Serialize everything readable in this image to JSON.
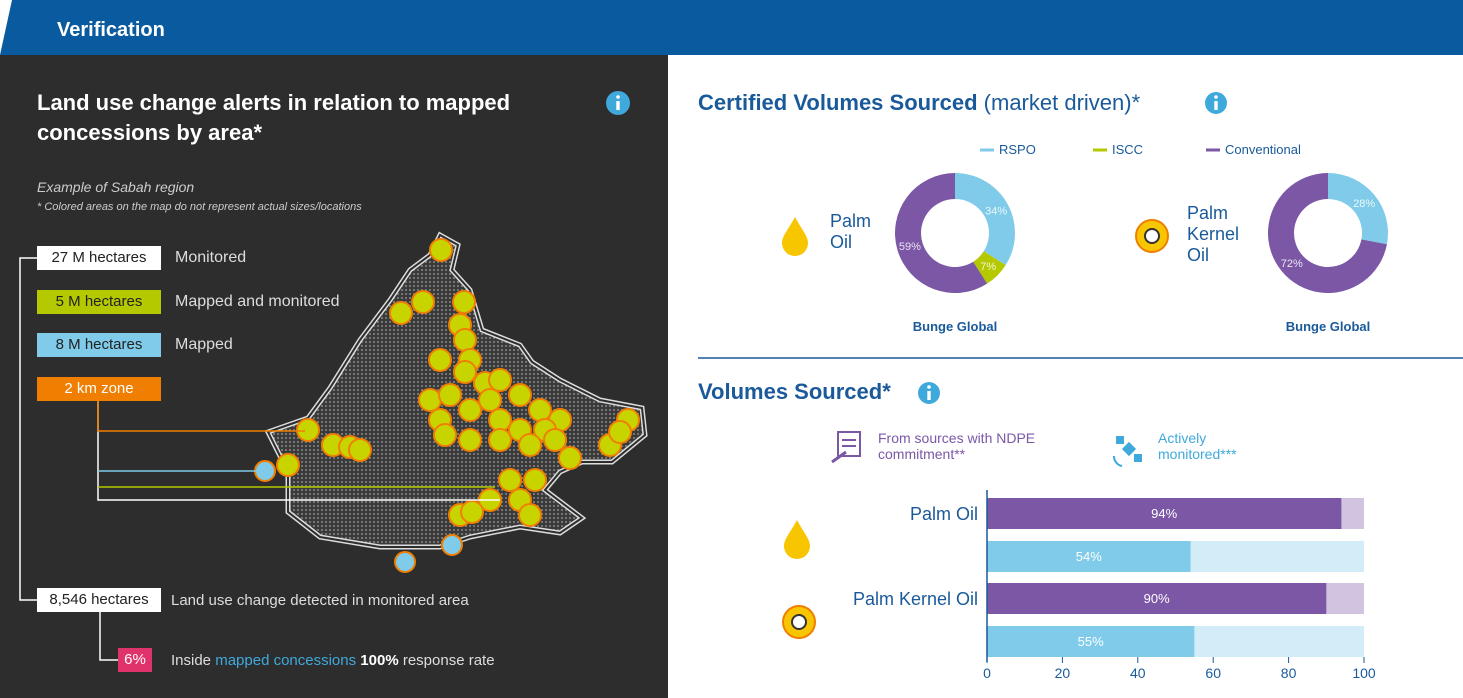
{
  "header": {
    "title": "Verification"
  },
  "land_use": {
    "title": "Land use change alerts in relation to mapped concessions by area*",
    "subtitle": "Example of Sabah region",
    "note": "* Colored areas on the map do not represent actual sizes/locations",
    "legend": [
      {
        "box": "27 M hectares",
        "label": "Monitored",
        "color": "#ffffff"
      },
      {
        "box": "5 M hectares",
        "label": "Mapped and monitored",
        "color": "#b5c900"
      },
      {
        "box": "8 M hectares",
        "label": "Mapped",
        "color": "#7fcbe9"
      },
      {
        "box": "2 km zone",
        "color": "#f07e00"
      }
    ],
    "detected": {
      "box": "8,546 hectares",
      "label": "Land use change detected in monitored area"
    },
    "inside": {
      "box": "6%",
      "text": "Inside",
      "link": "mapped concessions",
      "bold": "100%",
      "rest": "response rate"
    }
  },
  "certified": {
    "title": "Certified Volumes Sourced",
    "suffix": "(market driven)*"
  },
  "chart_data": [
    {
      "type": "pie",
      "label": "Palm Oil",
      "caption": "Bunge Global",
      "categories": [
        "RSPO",
        "ISCC",
        "Conventional"
      ],
      "values": [
        34,
        7,
        59
      ],
      "value_labels": [
        "34%",
        "7%",
        "59%"
      ],
      "colors": [
        "#7fcbe9",
        "#b5c900",
        "#7b57a6"
      ]
    },
    {
      "type": "pie",
      "label": "Palm Kernel Oil",
      "caption": "Bunge Global",
      "categories": [
        "RSPO",
        "Conventional"
      ],
      "values": [
        28,
        72
      ],
      "value_labels": [
        "28%",
        "72%"
      ],
      "colors": [
        "#7fcbe9",
        "#7b57a6"
      ]
    },
    {
      "type": "bar",
      "title": "Volumes Sourced*",
      "orientation": "horizontal",
      "categories": [
        "Palm Oil",
        "Palm Kernel Oil"
      ],
      "series": [
        {
          "name": "From sources with NDPE commitment**",
          "color": "#7b57a6",
          "values": [
            94,
            90
          ],
          "value_labels": [
            "94%",
            "90%"
          ]
        },
        {
          "name": "Actively monitored***",
          "color": "#7fcbe9",
          "values": [
            54,
            55
          ],
          "value_labels": [
            "54%",
            "55%"
          ]
        }
      ],
      "xlim": [
        0,
        100
      ],
      "xticks": [
        0,
        20,
        40,
        60,
        80,
        100
      ]
    }
  ]
}
